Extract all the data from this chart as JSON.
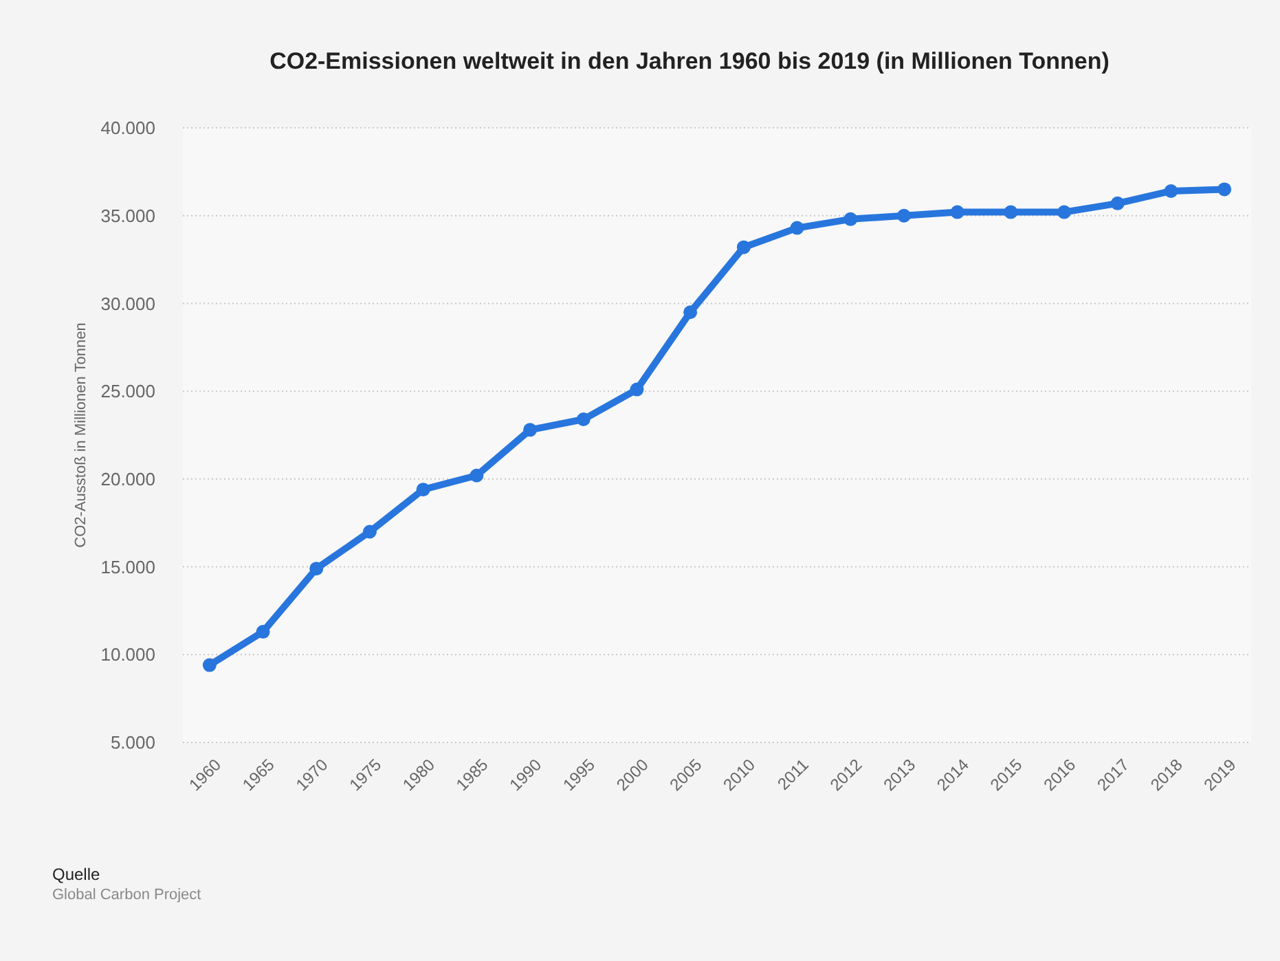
{
  "chart_data": {
    "type": "line",
    "title": "CO2-Emissionen weltweit in den Jahren 1960 bis 2019 (in Millionen Tonnen)",
    "ylabel": "CO2-Ausstoß in Millionen Tonnen",
    "categories": [
      "1960",
      "1965",
      "1970",
      "1975",
      "1980",
      "1985",
      "1990",
      "1995",
      "2000",
      "2005",
      "2010",
      "2011",
      "2012",
      "2013",
      "2014",
      "2015",
      "2016",
      "2017",
      "2018",
      "2019"
    ],
    "series": [
      {
        "color": "#2876dd",
        "values": [
          9400,
          11300,
          14900,
          17000,
          19400,
          20200,
          22800,
          23400,
          25100,
          29500,
          33200,
          34300,
          34800,
          35000,
          35200,
          35200,
          35200,
          35700,
          36400,
          36500
        ]
      }
    ],
    "ylim": [
      5000,
      40000
    ],
    "yticks": [
      {
        "value": 5000,
        "label": "5.000"
      },
      {
        "value": 10000,
        "label": "10.000"
      },
      {
        "value": 15000,
        "label": "15.000"
      },
      {
        "value": 20000,
        "label": "20.000"
      },
      {
        "value": 25000,
        "label": "25.000"
      },
      {
        "value": 30000,
        "label": "30.000"
      },
      {
        "value": 35000,
        "label": "35.000"
      },
      {
        "value": 40000,
        "label": "40.000"
      }
    ],
    "grid": "y",
    "marker": "circle",
    "line_style": "solid",
    "annotations": [
      "Quelle",
      "Global Carbon Project"
    ]
  }
}
